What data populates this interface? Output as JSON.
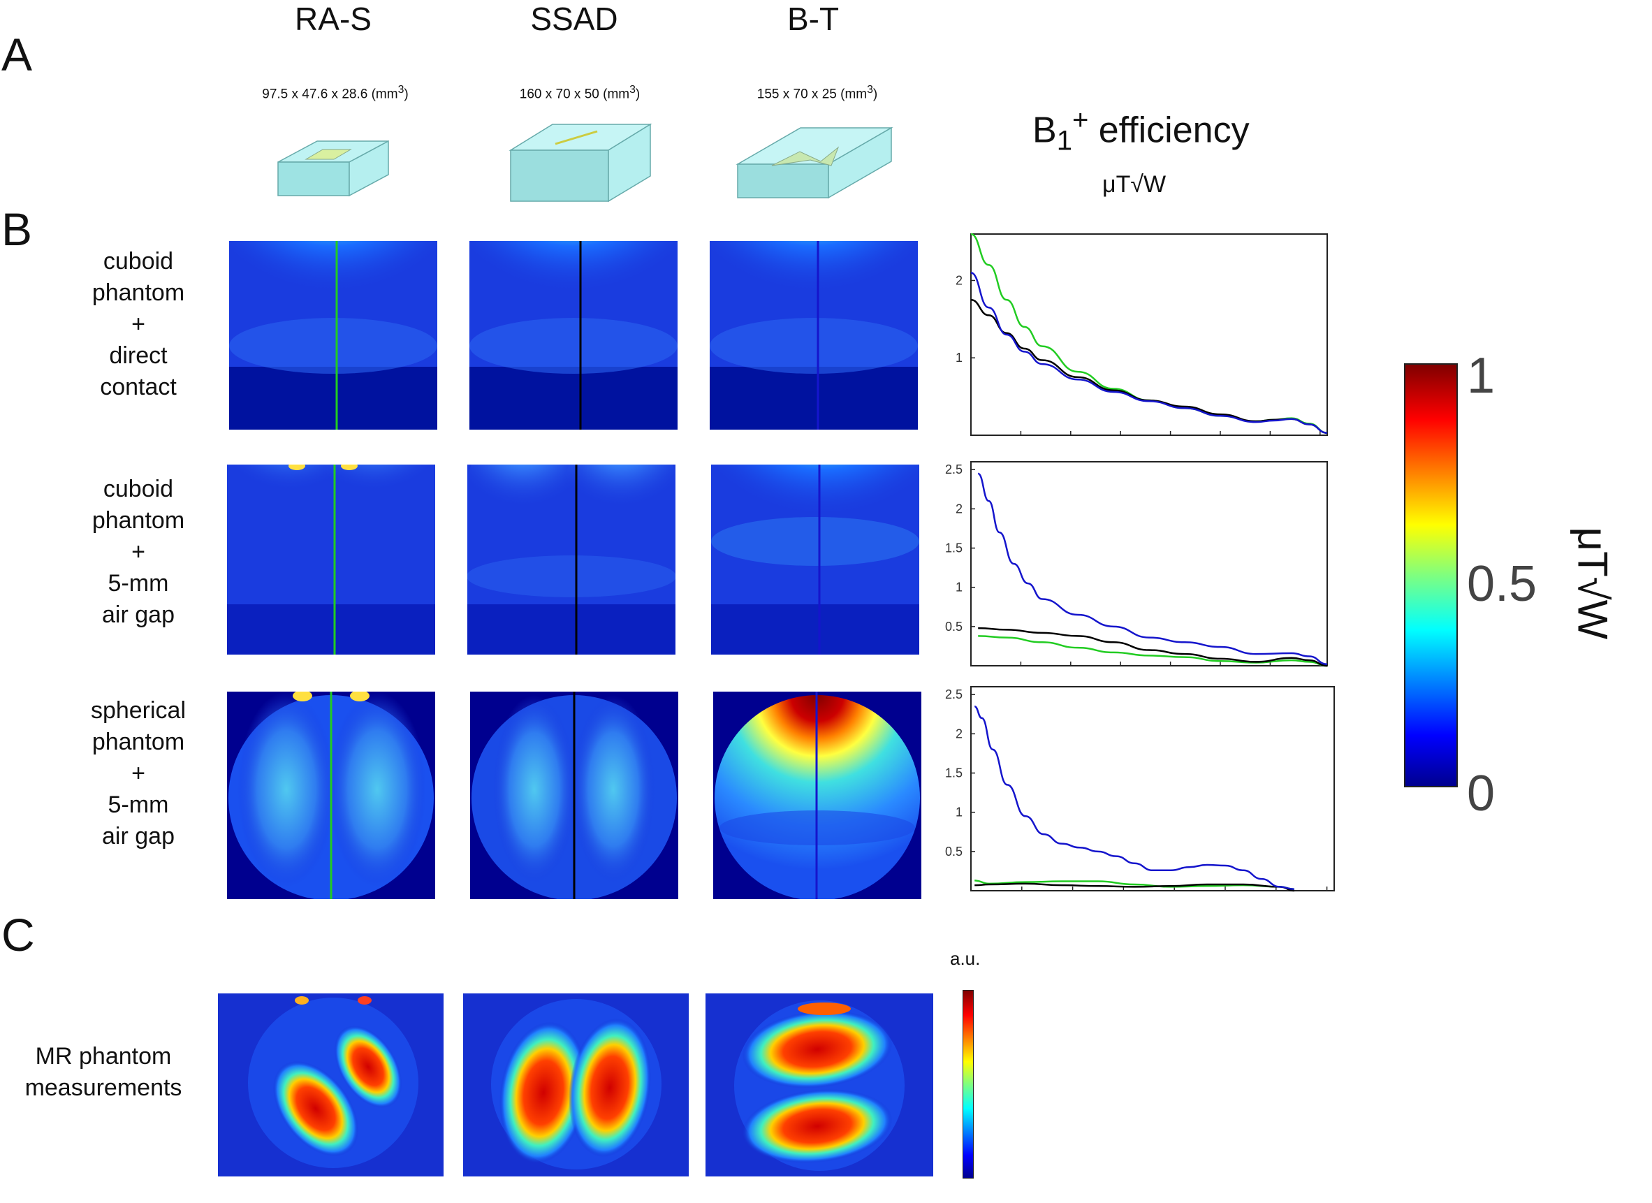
{
  "panels": {
    "a": "A",
    "b": "B",
    "c": "C"
  },
  "columns": [
    {
      "title": "RA-S",
      "dims": "97.5 x 47.6 x 28.6 (mm",
      "dims_sup": "3",
      "dims_end": ")"
    },
    {
      "title": "SSAD",
      "dims": "160 x 70 x 50 (mm",
      "dims_sup": "3",
      "dims_end": ")"
    },
    {
      "title": "B-T",
      "dims": "155 x 70 x 25 (mm",
      "dims_sup": "3",
      "dims_end": ")"
    }
  ],
  "efficiency": {
    "base": "B",
    "sub": "1",
    "sup": "+",
    "word": "efficiency",
    "unit": "μT√W"
  },
  "rows": [
    {
      "lines": [
        "cuboid",
        "phantom",
        "+",
        "direct",
        "contact"
      ]
    },
    {
      "lines": [
        "cuboid",
        "phantom",
        "+",
        "5-mm",
        "air gap"
      ]
    },
    {
      "lines": [
        "spherical",
        "phantom",
        "+",
        "5-mm",
        "air gap"
      ]
    }
  ],
  "measurement_label": [
    "MR phantom",
    "measurements"
  ],
  "colorbar": {
    "max": "1",
    "mid": "0.5",
    "min": "0",
    "unit": "μT√W"
  },
  "au_label": "a.u.",
  "colors": {
    "green": "#22cc22",
    "black": "#000000",
    "blue": "#1515cc",
    "jet_dark": "#00008f"
  },
  "chart_data": [
    {
      "type": "line",
      "title": "cuboid phantom + direct contact",
      "yticks": [
        "1",
        "2"
      ],
      "ylim": [
        0,
        2.6
      ],
      "xlim": [
        0,
        100
      ],
      "series": [
        {
          "name": "RA-S",
          "color": "green",
          "x": [
            0,
            5,
            10,
            15,
            20,
            30,
            40,
            50,
            60,
            70,
            80,
            85,
            90,
            95,
            100
          ],
          "y": [
            2.6,
            2.2,
            1.75,
            1.4,
            1.15,
            0.82,
            0.6,
            0.45,
            0.35,
            0.25,
            0.18,
            0.2,
            0.22,
            0.15,
            0.03
          ]
        },
        {
          "name": "SSAD",
          "color": "black",
          "x": [
            0,
            5,
            10,
            15,
            20,
            30,
            40,
            50,
            60,
            70,
            80,
            85,
            90,
            95,
            100
          ],
          "y": [
            1.75,
            1.55,
            1.32,
            1.12,
            0.97,
            0.75,
            0.58,
            0.45,
            0.37,
            0.27,
            0.18,
            0.2,
            0.21,
            0.14,
            0.03
          ]
        },
        {
          "name": "B-T",
          "color": "blue",
          "x": [
            0,
            5,
            10,
            15,
            20,
            30,
            40,
            50,
            60,
            70,
            80,
            85,
            90,
            95,
            100
          ],
          "y": [
            2.1,
            1.65,
            1.3,
            1.08,
            0.92,
            0.72,
            0.56,
            0.44,
            0.35,
            0.25,
            0.17,
            0.19,
            0.21,
            0.14,
            0.03
          ]
        }
      ]
    },
    {
      "type": "line",
      "title": "cuboid phantom + 5-mm air gap",
      "yticks": [
        "0.5",
        "1",
        "1.5",
        "2",
        "2.5"
      ],
      "ylim": [
        0,
        2.6
      ],
      "xlim": [
        0,
        100
      ],
      "series": [
        {
          "name": "RA-S",
          "color": "green",
          "x": [
            2,
            10,
            20,
            30,
            40,
            50,
            60,
            70,
            80,
            90,
            95,
            100
          ],
          "y": [
            0.38,
            0.36,
            0.3,
            0.23,
            0.17,
            0.13,
            0.11,
            0.06,
            0.04,
            0.07,
            0.05,
            0.0
          ]
        },
        {
          "name": "SSAD",
          "color": "black",
          "x": [
            2,
            10,
            20,
            30,
            40,
            50,
            60,
            70,
            80,
            90,
            95,
            100
          ],
          "y": [
            0.48,
            0.46,
            0.42,
            0.38,
            0.3,
            0.2,
            0.15,
            0.09,
            0.05,
            0.1,
            0.07,
            0.0
          ]
        },
        {
          "name": "B-T",
          "color": "blue",
          "x": [
            2,
            5,
            8,
            12,
            16,
            20,
            30,
            40,
            50,
            60,
            70,
            80,
            90,
            95,
            100
          ],
          "y": [
            2.45,
            2.1,
            1.7,
            1.3,
            1.05,
            0.85,
            0.65,
            0.5,
            0.36,
            0.3,
            0.24,
            0.15,
            0.16,
            0.12,
            0.02
          ]
        }
      ]
    },
    {
      "type": "line",
      "title": "spherical phantom + 5-mm air gap",
      "yticks": [
        "0.5",
        "1",
        "1.5",
        "2",
        "2.5"
      ],
      "ylim": [
        0,
        2.6
      ],
      "xlim": [
        0,
        100
      ],
      "series": [
        {
          "name": "RA-S",
          "color": "green",
          "x": [
            1,
            5,
            15,
            25,
            35,
            45,
            55,
            65,
            75,
            85,
            89
          ],
          "y": [
            0.13,
            0.09,
            0.11,
            0.12,
            0.12,
            0.08,
            0.05,
            0.06,
            0.07,
            0.05,
            0.02
          ]
        },
        {
          "name": "SSAD",
          "color": "black",
          "x": [
            1,
            5,
            15,
            25,
            35,
            45,
            55,
            65,
            75,
            85,
            89
          ],
          "y": [
            0.07,
            0.08,
            0.09,
            0.07,
            0.06,
            0.05,
            0.06,
            0.08,
            0.08,
            0.05,
            0.0
          ]
        },
        {
          "name": "B-T",
          "color": "blue",
          "x": [
            1,
            3,
            6,
            10,
            15,
            20,
            25,
            30,
            35,
            40,
            45,
            50,
            55,
            60,
            65,
            70,
            75,
            80,
            85,
            89
          ],
          "y": [
            2.35,
            2.2,
            1.8,
            1.35,
            0.95,
            0.72,
            0.6,
            0.55,
            0.5,
            0.44,
            0.35,
            0.26,
            0.26,
            0.3,
            0.33,
            0.32,
            0.26,
            0.15,
            0.05,
            0.02
          ]
        }
      ]
    }
  ]
}
